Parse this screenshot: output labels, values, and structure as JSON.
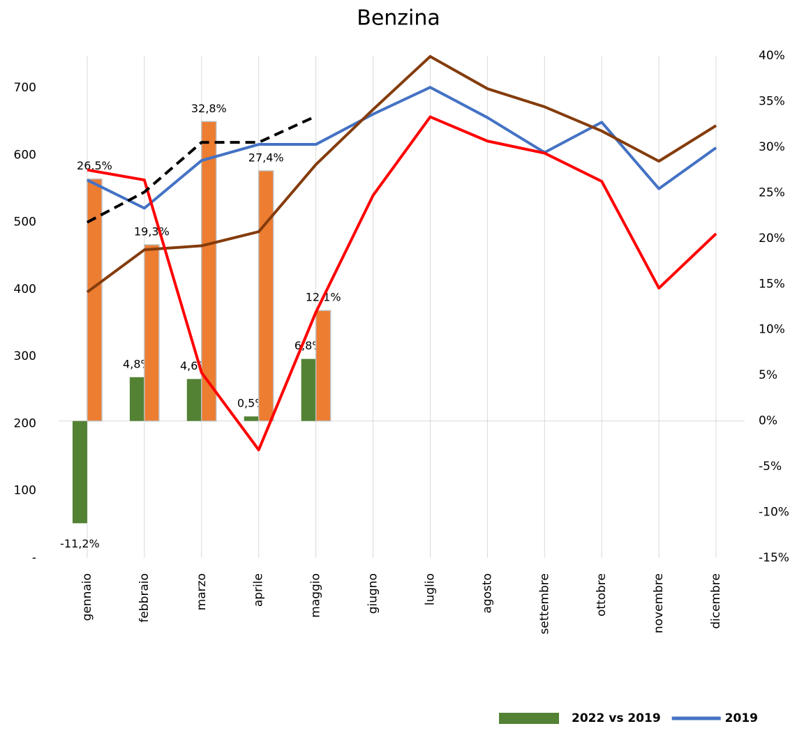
{
  "chart_data": {
    "type": "combo",
    "title": "Benzina",
    "categories": [
      "gennaio",
      "febbraio",
      "marzo",
      "aprile",
      "maggio",
      "giugno",
      "luglio",
      "agosto",
      "settembre",
      "ottobre",
      "novembre",
      "dicembre"
    ],
    "ylim": [
      0,
      748
    ],
    "yticks": [
      {
        "value": 0,
        "label": "-"
      },
      100,
      200,
      300,
      400,
      500,
      600,
      700
    ],
    "y2lim": [
      -15,
      40
    ],
    "y2ticks": [
      {
        "value": -15,
        "label": "-15%"
      },
      {
        "value": -10,
        "label": "-10%"
      },
      {
        "value": -5,
        "label": "-5%"
      },
      {
        "value": 0,
        "label": "0%"
      },
      {
        "value": 5,
        "label": "5%"
      },
      {
        "value": 10,
        "label": "10%"
      },
      {
        "value": 15,
        "label": "15%"
      },
      {
        "value": 20,
        "label": "20%"
      },
      {
        "value": 25,
        "label": "25%"
      },
      {
        "value": 30,
        "label": "30%"
      },
      {
        "value": 35,
        "label": "35%"
      },
      {
        "value": 40,
        "label": "40%"
      }
    ],
    "xgrid": true,
    "legend": "bottom-right",
    "series": [
      {
        "name": "2022 vs 2019",
        "type": "bar",
        "axis": "y2",
        "color": "#548235",
        "values": [
          -11.2,
          4.8,
          4.6,
          0.5,
          6.8,
          null,
          null,
          null,
          null,
          null,
          null,
          null
        ],
        "value_labels": [
          "-11,2%",
          "4,8%",
          "4,6%",
          "0,5%",
          "6,8%",
          null,
          null,
          null,
          null,
          null,
          null,
          null
        ]
      },
      {
        "type": "bar",
        "axis": "y2",
        "color": "#ed7d31",
        "values": [
          26.5,
          19.3,
          32.8,
          27.4,
          12.1,
          null,
          null,
          null,
          null,
          null,
          null,
          null
        ],
        "value_labels": [
          "26,5%",
          "19,3%",
          "32,8%",
          "27,4%",
          "12,1%",
          null,
          null,
          null,
          null,
          null,
          null,
          null
        ]
      },
      {
        "name": "2019",
        "type": "line",
        "color": "#4472c4",
        "values": [
          563,
          521,
          592,
          616,
          616,
          661,
          701,
          656,
          604,
          649,
          550,
          611
        ]
      },
      {
        "type": "line",
        "color": "#843c0c",
        "values": [
          396,
          459,
          465,
          486,
          586,
          668,
          747,
          699,
          672,
          636,
          591,
          644
        ]
      },
      {
        "type": "line",
        "color": "#ff0000",
        "values": [
          578,
          563,
          276,
          161,
          366,
          540,
          657,
          621,
          603,
          561,
          402,
          483
        ]
      },
      {
        "type": "line",
        "color": "#000000",
        "dashed": true,
        "values": [
          500,
          545,
          619,
          619,
          658,
          null,
          null,
          null,
          null,
          null,
          null,
          null
        ]
      }
    ]
  }
}
